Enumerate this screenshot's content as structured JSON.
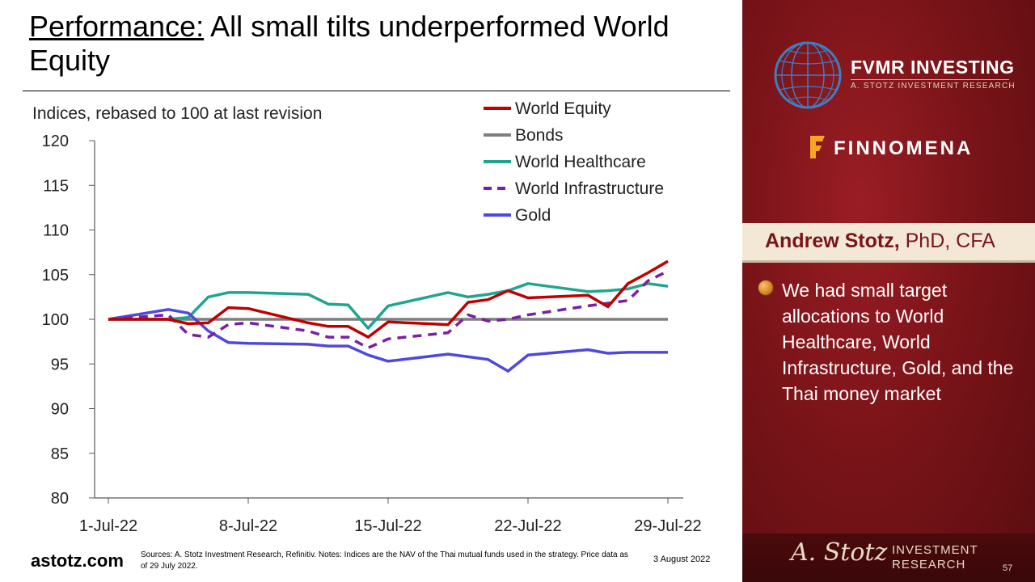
{
  "title": {
    "underlined": "Performance:",
    "rest": " All small tilts underperformed World Equity"
  },
  "chart_data": {
    "type": "line",
    "title": "Indices, rebased to 100 at last revision",
    "ylim": [
      80,
      120
    ],
    "yticks": [
      80,
      85,
      90,
      95,
      100,
      105,
      110,
      115,
      120
    ],
    "x": [
      "1-Jul-22",
      "4-Jul-22",
      "5-Jul-22",
      "6-Jul-22",
      "7-Jul-22",
      "8-Jul-22",
      "11-Jul-22",
      "12-Jul-22",
      "13-Jul-22",
      "14-Jul-22",
      "15-Jul-22",
      "18-Jul-22",
      "19-Jul-22",
      "20-Jul-22",
      "21-Jul-22",
      "22-Jul-22",
      "25-Jul-22",
      "26-Jul-22",
      "27-Jul-22",
      "28-Jul-22",
      "29-Jul-22"
    ],
    "x_days": [
      1,
      4,
      5,
      6,
      7,
      8,
      11,
      12,
      13,
      14,
      15,
      18,
      19,
      20,
      21,
      22,
      25,
      26,
      27,
      28,
      29
    ],
    "xtick_labels": [
      "1-Jul-22",
      "8-Jul-22",
      "15-Jul-22",
      "22-Jul-22",
      "29-Jul-22"
    ],
    "xtick_days": [
      1,
      8,
      15,
      22,
      29
    ],
    "grid": false,
    "legend_position": "top",
    "series": [
      {
        "name": "World Equity",
        "color": "#c00000",
        "dash": false,
        "values": [
          100,
          100,
          99.5,
          99.6,
          101.3,
          101.2,
          99.6,
          99.2,
          99.2,
          98,
          99.7,
          99.4,
          101.9,
          102.2,
          103.2,
          102.4,
          102.7,
          101.4,
          104,
          105.2,
          106.5
        ]
      },
      {
        "name": "Bonds",
        "color": "#7f7f7f",
        "dash": false,
        "values": [
          100,
          100,
          100,
          100,
          100,
          100,
          100,
          100,
          100,
          100,
          100,
          100,
          100,
          100,
          100,
          100,
          100,
          100,
          100,
          100,
          100
        ]
      },
      {
        "name": "World Healthcare",
        "color": "#1fa58f",
        "dash": false,
        "values": [
          100,
          100,
          100.2,
          102.5,
          103,
          103,
          102.8,
          101.7,
          101.6,
          99,
          101.5,
          103,
          102.5,
          102.8,
          103.2,
          104,
          103.1,
          103.2,
          103.4,
          104,
          103.7
        ]
      },
      {
        "name": "World Infrastructure",
        "color": "#7b1fa2",
        "dash": true,
        "values": [
          100,
          100.5,
          98.3,
          98,
          99.4,
          99.6,
          98.7,
          98,
          98,
          96.8,
          97.8,
          98.5,
          100.5,
          99.8,
          100,
          100.5,
          101.5,
          101.8,
          102.1,
          104.3,
          105.4
        ]
      },
      {
        "name": "Gold",
        "color": "#4f48e0",
        "dash": false,
        "values": [
          100,
          101.1,
          100.7,
          98.7,
          97.4,
          97.3,
          97.2,
          97,
          97,
          96,
          95.3,
          96.1,
          95.8,
          95.5,
          94.2,
          96,
          96.6,
          96.2,
          96.3,
          96.3,
          96.3
        ]
      }
    ]
  },
  "footer": {
    "site": "astotz.com",
    "sources": "Sources: A. Stotz Investment Research, Refinitiv. Notes: Indices are the NAV of the Thai mutual funds used in the strategy. Price data as of 29 July 2022.",
    "date": "3 August 2022",
    "page_number": "57"
  },
  "panel": {
    "fvmr_name": "FVMR INVESTING",
    "fvmr_sub": "A. STOTZ INVESTMENT RESEARCH",
    "finnomena": "FINNOMENA",
    "presenter_name": "Andrew Stotz,",
    "presenter_credentials": " PhD, CFA",
    "bullet": "We had small target allocations to World Healthcare, World Infrastructure, Gold, and the Thai money market",
    "signature": "A. Stotz",
    "investment_research": "INVESTMENT\nRESEARCH"
  },
  "colors": {
    "panel_red": "#7a1419",
    "name_bar": "#f3e7d6",
    "accent_gold": "#d8b07a"
  }
}
